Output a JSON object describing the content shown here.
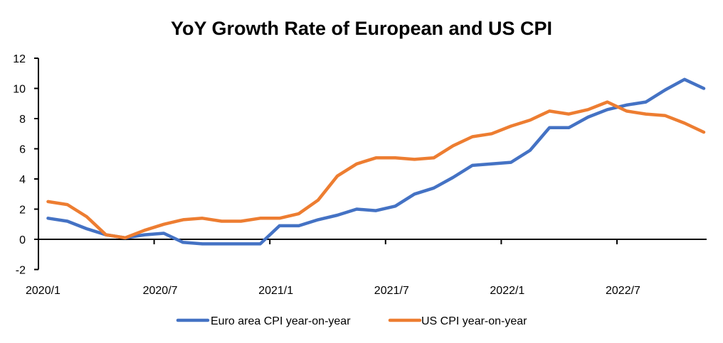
{
  "chart_data": {
    "type": "line",
    "title": "YoY Growth Rate of European and US CPI",
    "xlabel": "",
    "ylabel": "",
    "ylim": [
      -2,
      12
    ],
    "yticks": [
      -2,
      0,
      2,
      4,
      6,
      8,
      10,
      12
    ],
    "x": [
      "2020/1",
      "2020/2",
      "2020/3",
      "2020/4",
      "2020/5",
      "2020/6",
      "2020/7",
      "2020/8",
      "2020/9",
      "2020/10",
      "2020/11",
      "2020/12",
      "2021/1",
      "2021/2",
      "2021/3",
      "2021/4",
      "2021/5",
      "2021/6",
      "2021/7",
      "2021/8",
      "2021/9",
      "2021/10",
      "2021/11",
      "2021/12",
      "2022/1",
      "2022/2",
      "2022/3",
      "2022/4",
      "2022/5",
      "2022/6",
      "2022/7",
      "2022/8",
      "2022/9",
      "2022/10",
      "2022/11"
    ],
    "xtick_labels": [
      "2020/1",
      "2020/7",
      "2021/1",
      "2021/7",
      "2022/1",
      "2022/7"
    ],
    "grid": false,
    "legend_position": "bottom",
    "series": [
      {
        "name": "Euro area CPI year-on-year",
        "color": "#4472C4",
        "values": [
          1.4,
          1.2,
          0.7,
          0.3,
          0.1,
          0.3,
          0.4,
          -0.2,
          -0.3,
          -0.3,
          -0.3,
          -0.3,
          0.9,
          0.9,
          1.3,
          1.6,
          2.0,
          1.9,
          2.2,
          3.0,
          3.4,
          4.1,
          4.9,
          5.0,
          5.1,
          5.9,
          7.4,
          7.4,
          8.1,
          8.6,
          8.9,
          9.1,
          9.9,
          10.6,
          10.0
        ]
      },
      {
        "name": "US CPI year-on-year",
        "color": "#ED7D31",
        "values": [
          2.5,
          2.3,
          1.5,
          0.3,
          0.1,
          0.6,
          1.0,
          1.3,
          1.4,
          1.2,
          1.2,
          1.4,
          1.4,
          1.7,
          2.6,
          4.2,
          5.0,
          5.4,
          5.4,
          5.3,
          5.4,
          6.2,
          6.8,
          7.0,
          7.5,
          7.9,
          8.5,
          8.3,
          8.6,
          9.1,
          8.5,
          8.3,
          8.2,
          7.7,
          7.1
        ]
      }
    ]
  }
}
